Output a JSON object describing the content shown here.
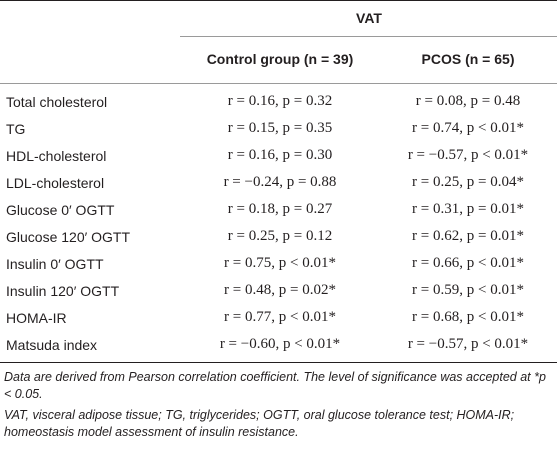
{
  "table": {
    "group_header": "VAT",
    "columns": [
      {
        "label": "Control group (n = 39)"
      },
      {
        "label": "PCOS (n = 65)"
      }
    ],
    "rows": [
      {
        "label": "Total cholesterol",
        "control": "r = 0.16, p = 0.32",
        "pcos": "r = 0.08, p = 0.48"
      },
      {
        "label": "TG",
        "control": "r = 0.15, p = 0.35",
        "pcos": "r = 0.74, p < 0.01*"
      },
      {
        "label": "HDL-cholesterol",
        "control": "r = 0.16, p = 0.30",
        "pcos": "r = −0.57, p < 0.01*"
      },
      {
        "label": "LDL-cholesterol",
        "control": "r = −0.24, p = 0.88",
        "pcos": "r = 0.25, p = 0.04*"
      },
      {
        "label": "Glucose 0′ OGTT",
        "control": "r = 0.18, p = 0.27",
        "pcos": "r = 0.31, p = 0.01*"
      },
      {
        "label": "Glucose 120′ OGTT",
        "control": "r = 0.25, p = 0.12",
        "pcos": "r = 0.62, p = 0.01*"
      },
      {
        "label": "Insulin 0′ OGTT",
        "control": "r = 0.75, p < 0.01*",
        "pcos": "r = 0.66, p < 0.01*"
      },
      {
        "label": "Insulin 120′ OGTT",
        "control": "r = 0.48, p = 0.02*",
        "pcos": "r = 0.59, p < 0.01*"
      },
      {
        "label": "HOMA-IR",
        "control": "r = 0.77, p < 0.01*",
        "pcos": "r = 0.68, p < 0.01*"
      },
      {
        "label": "Matsuda index",
        "control": "r = −0.60, p < 0.01*",
        "pcos": "r = −0.57, p < 0.01*"
      }
    ]
  },
  "footnotes": {
    "note1": "Data are derived from Pearson correlation coefficient. The level of significance was accepted at *p < 0.05.",
    "note2": "VAT, visceral adipose tissue; TG, triglycerides; OGTT, oral glucose tolerance test; HOMA-IR; homeostasis model assessment of insulin resistance."
  }
}
